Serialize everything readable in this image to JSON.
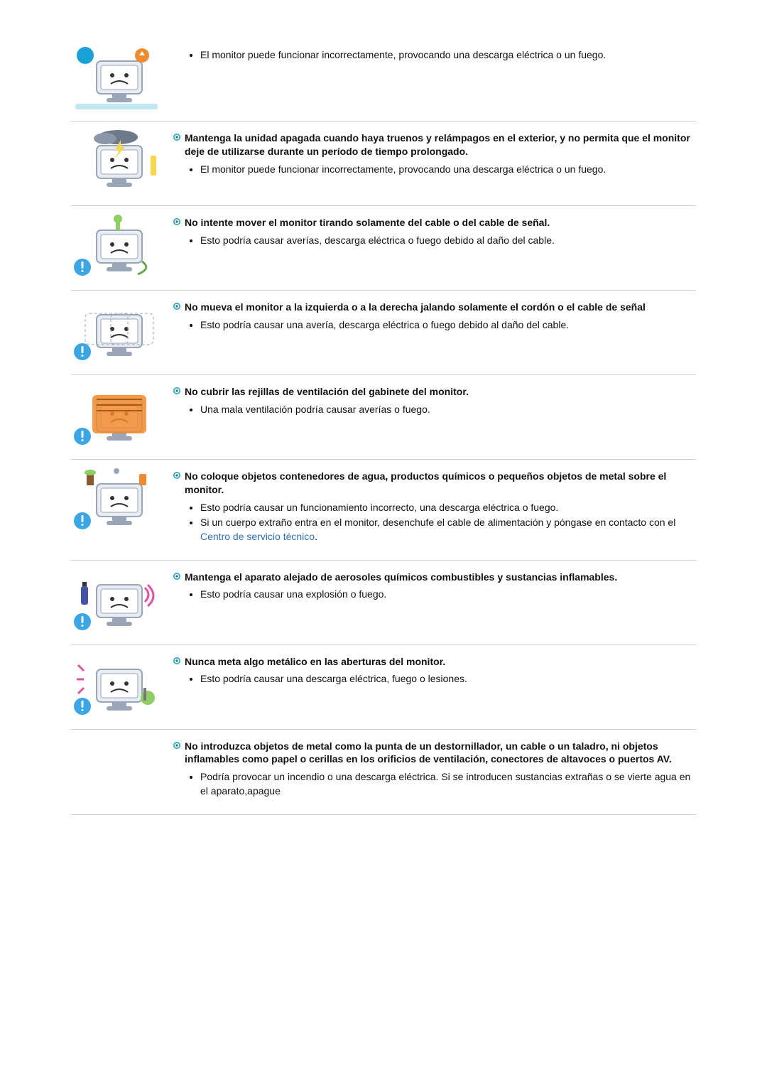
{
  "colors": {
    "text": "#111111",
    "rule": "#d0d0d0",
    "link": "#2e6fb7",
    "bullet_outer": "#2aa7c9",
    "bullet_inner": "#ffffff",
    "bullet_dot": "#1d6f86",
    "thumb_monitor_body": "#e8edf3",
    "thumb_monitor_stroke": "#9aa6b8",
    "thumb_face": "#f8d98a",
    "thumb_accent_blue": "#1aa2d8",
    "thumb_accent_orange": "#f08a2e",
    "thumb_accent_red": "#e44",
    "thumb_accent_green": "#8fce62",
    "thumb_accent_yellow": "#f6d84a",
    "thumb_alert_blue": "#3aa6e6",
    "thumb_alert_bang": "#ffffff",
    "thumb_ground": "#bfe8f3"
  },
  "items": [
    {
      "heading": null,
      "notes": [
        {
          "text": "El monitor puede funcionar incorrectamente, provocando una descarga eléctrica o un fuego."
        }
      ],
      "thumb": {
        "variant": "toy",
        "alert": false,
        "ground": true
      }
    },
    {
      "heading": "Mantenga la unidad apagada cuando haya truenos y relámpagos en el exterior, y no permita que el monitor deje de utilizarse durante un período de tiempo prolongado.",
      "notes": [
        {
          "text": "El monitor puede funcionar incorrectamente, provocando una descarga eléctrica o un fuego."
        }
      ],
      "thumb": {
        "variant": "storm",
        "alert": false,
        "ground": false
      }
    },
    {
      "heading": "No intente mover el monitor tirando solamente del cable o del cable de señal.",
      "notes": [
        {
          "text": "Esto podría causar averías, descarga eléctrica o fuego debido al daño del cable."
        }
      ],
      "thumb": {
        "variant": "pull",
        "alert": true,
        "ground": false
      }
    },
    {
      "heading": "No mueva el monitor a la izquierda o a la derecha jalando solamente el cordón o el cable de señal",
      "notes": [
        {
          "text": "Esto podría causar una avería, descarga eléctrica o fuego debido al daño del cable."
        }
      ],
      "thumb": {
        "variant": "swing",
        "alert": true,
        "ground": false
      }
    },
    {
      "heading": "No cubrir las rejillas de ventilación del gabinete del monitor.",
      "notes": [
        {
          "text": "Una mala ventilación podría causar averías o fuego."
        }
      ],
      "thumb": {
        "variant": "vent-cover",
        "alert": true,
        "ground": false
      }
    },
    {
      "heading": "No coloque objetos contenedores de agua, productos químicos o pequeños objetos de metal sobre el monitor.",
      "notes": [
        {
          "text": "Esto podría causar un funcionamiento incorrecto, una descarga eléctrica o fuego."
        },
        {
          "text": "Si un cuerpo extraño entra en el monitor, desenchufe el cable de alimentación y póngase en contacto con el ",
          "link_text": "Centro de servicio técnico",
          "after": "."
        }
      ],
      "thumb": {
        "variant": "water",
        "alert": true,
        "ground": false
      }
    },
    {
      "heading": "Mantenga el aparato alejado de aerosoles químicos combustibles y sustancias inflamables.",
      "notes": [
        {
          "text": "Esto podría causar una explosión o fuego."
        }
      ],
      "thumb": {
        "variant": "spray",
        "alert": true,
        "ground": false
      }
    },
    {
      "heading": "Nunca meta algo metálico en las aberturas del monitor.",
      "notes": [
        {
          "text": "Esto podría causar una descarga eléctrica, fuego o lesiones."
        }
      ],
      "thumb": {
        "variant": "poke",
        "alert": true,
        "ground": false
      }
    },
    {
      "heading": "No introduzca objetos de metal como la punta de un destornillador, un cable o un taladro, ni objetos inflamables como papel o cerillas en los orificios de ventilación, conectores de altavoces o puertos AV.",
      "notes": [
        {
          "text": "Podría provocar un incendio o una descarga eléctrica. Si se introducen sustancias extrañas o se vierte agua en el aparato,apague"
        }
      ],
      "thumb": null
    }
  ]
}
